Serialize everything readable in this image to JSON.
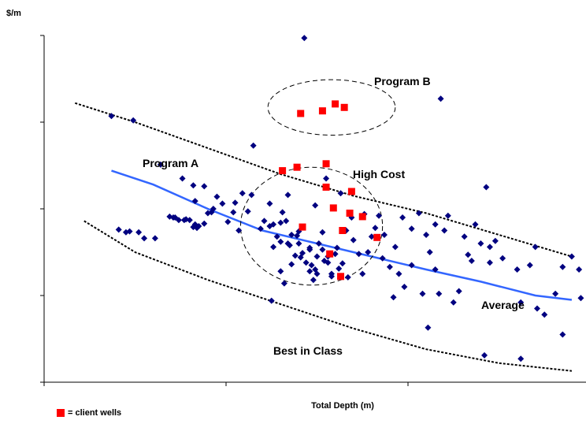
{
  "chart_data": {
    "type": "scatter",
    "ylabel": "$/m",
    "xlabel": "Total Depth (m)",
    "xlim": [
      0,
      3
    ],
    "ylim": [
      0,
      4
    ],
    "grid": false,
    "tick_labels_shown": false,
    "legend": {
      "position": "bottom-left",
      "label": "= client wells",
      "color": "#ff0000"
    },
    "colors": {
      "wells": "#000080",
      "client": "#ff0000",
      "average": "#3366ff",
      "boundary": "#000000"
    },
    "annotations": [
      "Program A",
      "Program B",
      "High Cost",
      "Average",
      "Best in Class"
    ],
    "series": [
      {
        "name": "wells",
        "marker": "diamond",
        "points": [
          [
            0.37,
            3.07
          ],
          [
            0.49,
            3.02
          ],
          [
            0.64,
            2.51
          ],
          [
            1.43,
            3.97
          ],
          [
            2.18,
            3.27
          ],
          [
            1.15,
            2.73
          ],
          [
            0.88,
            2.26
          ],
          [
            0.82,
            2.27
          ],
          [
            0.76,
            2.35
          ],
          [
            0.83,
            2.09
          ],
          [
            0.95,
            2.14
          ],
          [
            1.05,
            2.07
          ],
          [
            1.09,
            2.18
          ],
          [
            1.14,
            2.16
          ],
          [
            1.12,
            1.97
          ],
          [
            1.04,
            1.96
          ],
          [
            0.92,
            1.96
          ],
          [
            0.88,
            1.83
          ],
          [
            0.8,
            1.87
          ],
          [
            0.83,
            1.82
          ],
          [
            0.85,
            1.8
          ],
          [
            0.84,
            1.78
          ],
          [
            0.82,
            1.79
          ],
          [
            0.78,
            1.88
          ],
          [
            0.77,
            1.87
          ],
          [
            0.74,
            1.87
          ],
          [
            0.72,
            1.9
          ],
          [
            0.71,
            1.9
          ],
          [
            0.69,
            1.91
          ],
          [
            0.61,
            1.66
          ],
          [
            0.55,
            1.66
          ],
          [
            0.52,
            1.73
          ],
          [
            0.45,
            1.73
          ],
          [
            0.41,
            1.76
          ],
          [
            0.47,
            1.74
          ],
          [
            1.07,
            1.75
          ],
          [
            1.19,
            1.77
          ],
          [
            1.24,
            1.8
          ],
          [
            1.26,
            1.82
          ],
          [
            1.3,
            1.84
          ],
          [
            1.33,
            1.86
          ],
          [
            1.36,
            1.7
          ],
          [
            1.39,
            1.69
          ],
          [
            1.34,
            1.6
          ],
          [
            1.3,
            1.62
          ],
          [
            1.28,
            1.68
          ],
          [
            1.26,
            1.56
          ],
          [
            1.3,
            1.28
          ],
          [
            1.32,
            1.14
          ],
          [
            1.36,
            1.36
          ],
          [
            1.38,
            1.46
          ],
          [
            1.42,
            1.49
          ],
          [
            1.46,
            1.53
          ],
          [
            1.41,
            1.44
          ],
          [
            1.44,
            1.38
          ],
          [
            1.47,
            1.35
          ],
          [
            1.51,
            1.6
          ],
          [
            1.49,
            1.3
          ],
          [
            1.48,
            1.18
          ],
          [
            1.5,
            1.25
          ],
          [
            1.53,
            1.53
          ],
          [
            1.56,
            1.38
          ],
          [
            1.58,
            1.25
          ],
          [
            1.62,
            1.31
          ],
          [
            1.67,
            1.21
          ],
          [
            1.7,
            1.64
          ],
          [
            1.75,
            1.25
          ],
          [
            1.78,
            1.5
          ],
          [
            1.82,
            1.78
          ],
          [
            1.84,
            1.92
          ],
          [
            1.86,
            1.43
          ],
          [
            1.9,
            1.33
          ],
          [
            1.93,
            1.56
          ],
          [
            1.95,
            1.25
          ],
          [
            1.98,
            1.1
          ],
          [
            2.02,
            1.35
          ],
          [
            2.06,
            1.95
          ],
          [
            2.08,
            1.02
          ],
          [
            2.12,
            1.5
          ],
          [
            2.15,
            1.3
          ],
          [
            2.17,
            1.02
          ],
          [
            2.2,
            1.75
          ],
          [
            2.25,
            0.92
          ],
          [
            2.28,
            1.05
          ],
          [
            2.33,
            1.47
          ],
          [
            2.37,
            1.82
          ],
          [
            2.4,
            1.6
          ],
          [
            2.45,
            1.56
          ],
          [
            2.52,
            1.43
          ],
          [
            2.62,
            0.92
          ],
          [
            2.7,
            1.56
          ],
          [
            2.81,
            1.02
          ],
          [
            2.85,
            1.33
          ],
          [
            2.94,
            1.3
          ],
          [
            2.71,
            0.85
          ],
          [
            2.62,
            0.27
          ],
          [
            2.42,
            0.31
          ],
          [
            2.11,
            0.63
          ],
          [
            1.25,
            0.94
          ],
          [
            1.58,
            1.22
          ],
          [
            1.46,
            1.28
          ],
          [
            1.54,
            1.4
          ],
          [
            1.4,
            1.6
          ],
          [
            1.49,
            2.04
          ],
          [
            1.34,
            2.16
          ],
          [
            1.31,
            1.96
          ],
          [
            1.21,
            1.86
          ],
          [
            1.24,
            2.06
          ],
          [
            1.01,
            1.85
          ],
          [
            0.98,
            2.06
          ],
          [
            0.93,
            2.0
          ],
          [
            0.9,
            1.95
          ],
          [
            1.55,
            2.35
          ],
          [
            1.63,
            2.18
          ],
          [
            1.66,
            1.75
          ],
          [
            1.73,
            1.48
          ],
          [
            1.8,
            1.68
          ],
          [
            1.87,
            1.7
          ],
          [
            2.15,
            1.82
          ],
          [
            2.43,
            2.25
          ],
          [
            2.45,
            1.38
          ],
          [
            2.48,
            1.63
          ],
          [
            2.6,
            1.3
          ],
          [
            2.75,
            0.78
          ],
          [
            2.85,
            0.55
          ],
          [
            2.95,
            0.97
          ],
          [
            1.64,
            1.37
          ],
          [
            1.6,
            1.48
          ],
          [
            1.61,
            1.55
          ],
          [
            1.56,
            1.45
          ],
          [
            1.5,
            1.45
          ],
          [
            1.46,
            1.55
          ],
          [
            1.35,
            1.58
          ],
          [
            1.4,
            1.74
          ],
          [
            1.53,
            1.73
          ],
          [
            1.69,
            1.9
          ],
          [
            1.76,
            1.94
          ],
          [
            1.97,
            1.9
          ],
          [
            2.02,
            1.77
          ],
          [
            2.1,
            1.7
          ],
          [
            2.22,
            1.92
          ],
          [
            2.31,
            1.68
          ],
          [
            2.35,
            1.4
          ],
          [
            1.92,
            0.98
          ],
          [
            2.67,
            1.35
          ],
          [
            2.9,
            1.45
          ]
        ]
      },
      {
        "name": "client wells",
        "marker": "square",
        "points": [
          [
            1.39,
            2.48
          ],
          [
            1.44,
            2.27
          ],
          [
            1.53,
            2.25
          ],
          [
            1.69,
            2.25
          ],
          [
            1.6,
            2.13
          ],
          [
            1.73,
            2.0
          ],
          [
            1.76,
            1.97
          ],
          [
            1.72,
            1.83
          ],
          [
            1.95,
            2.04
          ],
          [
            1.68,
            1.8
          ],
          [
            1.83,
            1.67
          ],
          [
            1.71,
            1.6
          ],
          [
            1.6,
            1.54
          ],
          [
            1.55,
            1.46
          ],
          [
            1.77,
            1.42
          ],
          [
            1.82,
            1.4
          ],
          [
            1.74,
            1.44
          ],
          [
            1.7,
            1.37
          ],
          [
            1.65,
            1.33
          ],
          [
            1.61,
            1.41
          ],
          [
            1.57,
            1.48
          ],
          [
            1.75,
            1.39
          ],
          [
            1.73,
            1.36
          ],
          [
            1.71,
            1.34
          ],
          [
            1.68,
            1.3
          ],
          [
            1.62,
            1.27
          ],
          [
            1.59,
            1.28
          ],
          [
            1.52,
            1.36
          ],
          [
            1.56,
            1.29
          ],
          [
            1.5,
            1.33
          ],
          [
            1.63,
            1.22
          ],
          [
            1.66,
            1.29
          ],
          [
            1.69,
            1.21
          ],
          [
            1.73,
            1.3
          ],
          [
            1.76,
            1.28
          ],
          [
            1.61,
            1.66
          ],
          [
            1.36,
            1.66
          ],
          [
            1.34,
            1.43
          ],
          [
            1.43,
            1.3
          ],
          [
            1.58,
            1.6
          ],
          [
            1.64,
            1.75
          ],
          [
            1.47,
            1.4
          ],
          [
            1.44,
            1.5
          ],
          [
            1.49,
            1.57
          ],
          [
            1.52,
            1.48
          ],
          [
            1.55,
            1.66
          ],
          [
            1.67,
            1.46
          ],
          [
            1.79,
            1.5
          ],
          [
            1.8,
            1.33
          ],
          [
            1.85,
            1.48
          ],
          [
            1.55,
            2.25
          ],
          [
            1.63,
            1.76
          ],
          [
            1.5,
            2.25
          ],
          [
            1.45,
            2.26
          ],
          [
            1.5,
            2.24
          ],
          [
            1.52,
            2.26
          ],
          [
            1.48,
            2.22
          ],
          [
            1.42,
            2.45
          ],
          [
            1.35,
            2.18
          ],
          [
            1.53,
            2.32
          ],
          [
            1.75,
            1.91
          ],
          [
            1.8,
            1.92
          ],
          [
            1.59,
            1.74
          ],
          [
            1.58,
            1.8
          ],
          [
            1.56,
            1.83
          ],
          [
            1.54,
            1.8
          ],
          [
            1.57,
            1.89
          ],
          [
            1.6,
            1.95
          ],
          [
            1.63,
            1.72
          ],
          [
            1.66,
            1.92
          ],
          [
            1.68,
            1.95
          ],
          [
            1.71,
            1.89
          ],
          [
            1.74,
            1.86
          ],
          [
            1.78,
            1.8
          ],
          [
            1.81,
            1.86
          ],
          [
            1.84,
            1.82
          ],
          [
            1.87,
            1.78
          ],
          [
            1.9,
            1.82
          ],
          [
            1.61,
            2.18
          ],
          [
            1.51,
            2.46
          ],
          [
            1.55,
            2.52
          ],
          [
            1.7,
            2.4
          ],
          [
            1.62,
            2.62
          ],
          [
            1.67,
            2.58
          ],
          [
            1.72,
            2.48
          ],
          [
            1.74,
            2.6
          ],
          [
            1.56,
            2.35
          ],
          [
            1.59,
            2.28
          ],
          [
            1.64,
            2.38
          ],
          [
            1.79,
            2.36
          ],
          [
            1.42,
            1.79
          ],
          [
            1.4,
            1.9
          ],
          [
            1.38,
            2.02
          ],
          [
            1.44,
            2.1
          ],
          [
            1.46,
            2.05
          ],
          [
            1.49,
            1.95
          ],
          [
            1.51,
            1.98
          ],
          [
            1.86,
            1.95
          ],
          [
            1.91,
            2.18
          ],
          [
            1.84,
            2.33
          ],
          [
            1.69,
            2.2
          ],
          [
            1.76,
            2.18
          ],
          [
            1.74,
            2.31
          ],
          [
            1.7,
            2.26
          ],
          [
            1.9,
            2.0
          ],
          [
            1.87,
            2.07
          ],
          [
            1.69,
            2.23
          ],
          [
            1.59,
            2.08
          ],
          [
            1.66,
            2.04
          ],
          [
            1.71,
            2.14
          ],
          [
            1.59,
            2.01
          ],
          [
            1.58,
            1.95
          ],
          [
            1.53,
            2.08
          ],
          [
            1.46,
            1.91
          ],
          [
            1.39,
            2.38
          ],
          [
            1.37,
            2.28
          ],
          [
            1.35,
            2.4
          ],
          [
            1.33,
            2.25
          ],
          [
            1.39,
            2.09
          ],
          [
            1.37,
            1.99
          ],
          [
            1.31,
            2.44
          ],
          [
            1.29,
            2.11
          ]
        ]
      },
      {
        "name": "client wells (Program B)",
        "marker": "square",
        "points": [
          [
            1.41,
            3.1
          ],
          [
            1.53,
            3.13
          ],
          [
            1.6,
            3.21
          ],
          [
            1.65,
            3.17
          ]
        ]
      }
    ],
    "lines": [
      {
        "name": "Average",
        "points": [
          [
            0.37,
            2.44
          ],
          [
            0.6,
            2.28
          ],
          [
            0.9,
            2.0
          ],
          [
            1.2,
            1.75
          ],
          [
            1.5,
            1.6
          ],
          [
            1.8,
            1.45
          ],
          [
            2.1,
            1.3
          ],
          [
            2.4,
            1.16
          ],
          [
            2.7,
            1.0
          ],
          [
            2.9,
            0.95
          ]
        ]
      },
      {
        "name": "High Cost",
        "points": [
          [
            0.17,
            3.22
          ],
          [
            0.5,
            3.0
          ],
          [
            0.9,
            2.7
          ],
          [
            1.3,
            2.4
          ],
          [
            1.7,
            2.15
          ],
          [
            2.1,
            1.95
          ],
          [
            2.5,
            1.7
          ],
          [
            2.9,
            1.45
          ]
        ]
      },
      {
        "name": "Best in Class",
        "points": [
          [
            0.22,
            1.86
          ],
          [
            0.5,
            1.5
          ],
          [
            0.9,
            1.18
          ],
          [
            1.3,
            0.9
          ],
          [
            1.7,
            0.62
          ],
          [
            2.1,
            0.38
          ],
          [
            2.5,
            0.22
          ],
          [
            2.9,
            0.13
          ]
        ]
      }
    ],
    "ellipses": [
      {
        "name": "Program A",
        "cx": 1.47,
        "cy": 1.8,
        "rx": 0.39,
        "ry": 0.68
      },
      {
        "name": "Program B",
        "cx": 1.58,
        "cy": 3.17,
        "rx": 0.35,
        "ry": 0.32
      }
    ]
  }
}
